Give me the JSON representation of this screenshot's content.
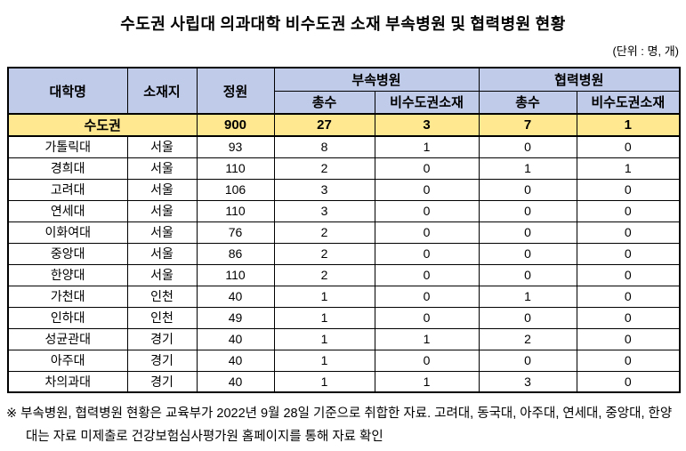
{
  "page": {
    "title": "수도권 사립대 의과대학 비수도권 소재 부속병원 및 협력병원 현황",
    "unit_label": "(단위 : 명, 개)"
  },
  "table": {
    "headers": {
      "university": "대학명",
      "location": "소재지",
      "quota": "정원",
      "affiliated_group": "부속병원",
      "cooperative_group": "협력병원",
      "affiliated_total": "총수",
      "affiliated_non_metro": "비수도권소재",
      "cooperative_total": "총수",
      "cooperative_non_metro": "비수도권소재"
    },
    "summary": {
      "label": "수도권",
      "quota": "900",
      "affiliated_total": "27",
      "affiliated_non_metro": "3",
      "cooperative_total": "7",
      "cooperative_non_metro": "1"
    },
    "rows": [
      {
        "university": "가톨릭대",
        "location": "서울",
        "quota": "93",
        "affiliated_total": "8",
        "affiliated_non_metro": "1",
        "cooperative_total": "0",
        "cooperative_non_metro": "0"
      },
      {
        "university": "경희대",
        "location": "서울",
        "quota": "110",
        "affiliated_total": "2",
        "affiliated_non_metro": "0",
        "cooperative_total": "1",
        "cooperative_non_metro": "1"
      },
      {
        "university": "고려대",
        "location": "서울",
        "quota": "106",
        "affiliated_total": "3",
        "affiliated_non_metro": "0",
        "cooperative_total": "0",
        "cooperative_non_metro": "0"
      },
      {
        "university": "연세대",
        "location": "서울",
        "quota": "110",
        "affiliated_total": "3",
        "affiliated_non_metro": "0",
        "cooperative_total": "0",
        "cooperative_non_metro": "0"
      },
      {
        "university": "이화여대",
        "location": "서울",
        "quota": "76",
        "affiliated_total": "2",
        "affiliated_non_metro": "0",
        "cooperative_total": "0",
        "cooperative_non_metro": "0"
      },
      {
        "university": "중앙대",
        "location": "서울",
        "quota": "86",
        "affiliated_total": "2",
        "affiliated_non_metro": "0",
        "cooperative_total": "0",
        "cooperative_non_metro": "0"
      },
      {
        "university": "한양대",
        "location": "서울",
        "quota": "110",
        "affiliated_total": "2",
        "affiliated_non_metro": "0",
        "cooperative_total": "0",
        "cooperative_non_metro": "0"
      },
      {
        "university": "가천대",
        "location": "인천",
        "quota": "40",
        "affiliated_total": "1",
        "affiliated_non_metro": "0",
        "cooperative_total": "1",
        "cooperative_non_metro": "0"
      },
      {
        "university": "인하대",
        "location": "인천",
        "quota": "49",
        "affiliated_total": "1",
        "affiliated_non_metro": "0",
        "cooperative_total": "0",
        "cooperative_non_metro": "0"
      },
      {
        "university": "성균관대",
        "location": "경기",
        "quota": "40",
        "affiliated_total": "1",
        "affiliated_non_metro": "1",
        "cooperative_total": "2",
        "cooperative_non_metro": "0"
      },
      {
        "university": "아주대",
        "location": "경기",
        "quota": "40",
        "affiliated_total": "1",
        "affiliated_non_metro": "0",
        "cooperative_total": "0",
        "cooperative_non_metro": "0"
      },
      {
        "university": "차의과대",
        "location": "경기",
        "quota": "40",
        "affiliated_total": "1",
        "affiliated_non_metro": "1",
        "cooperative_total": "3",
        "cooperative_non_metro": "0"
      }
    ]
  },
  "footnote": "※ 부속병원, 협력병원 현황은 교육부가 2022년 9월 28일 기준으로 취합한 자료. 고려대, 동국대, 아주대, 연세대, 중앙대, 한양대는 자료 미제출로 건강보험심사평가원 홈페이지를 통해 자료 확인",
  "colors": {
    "header_bg": "#c0cbe9",
    "summary_bg": "#ffe88f",
    "border": "#000000"
  }
}
